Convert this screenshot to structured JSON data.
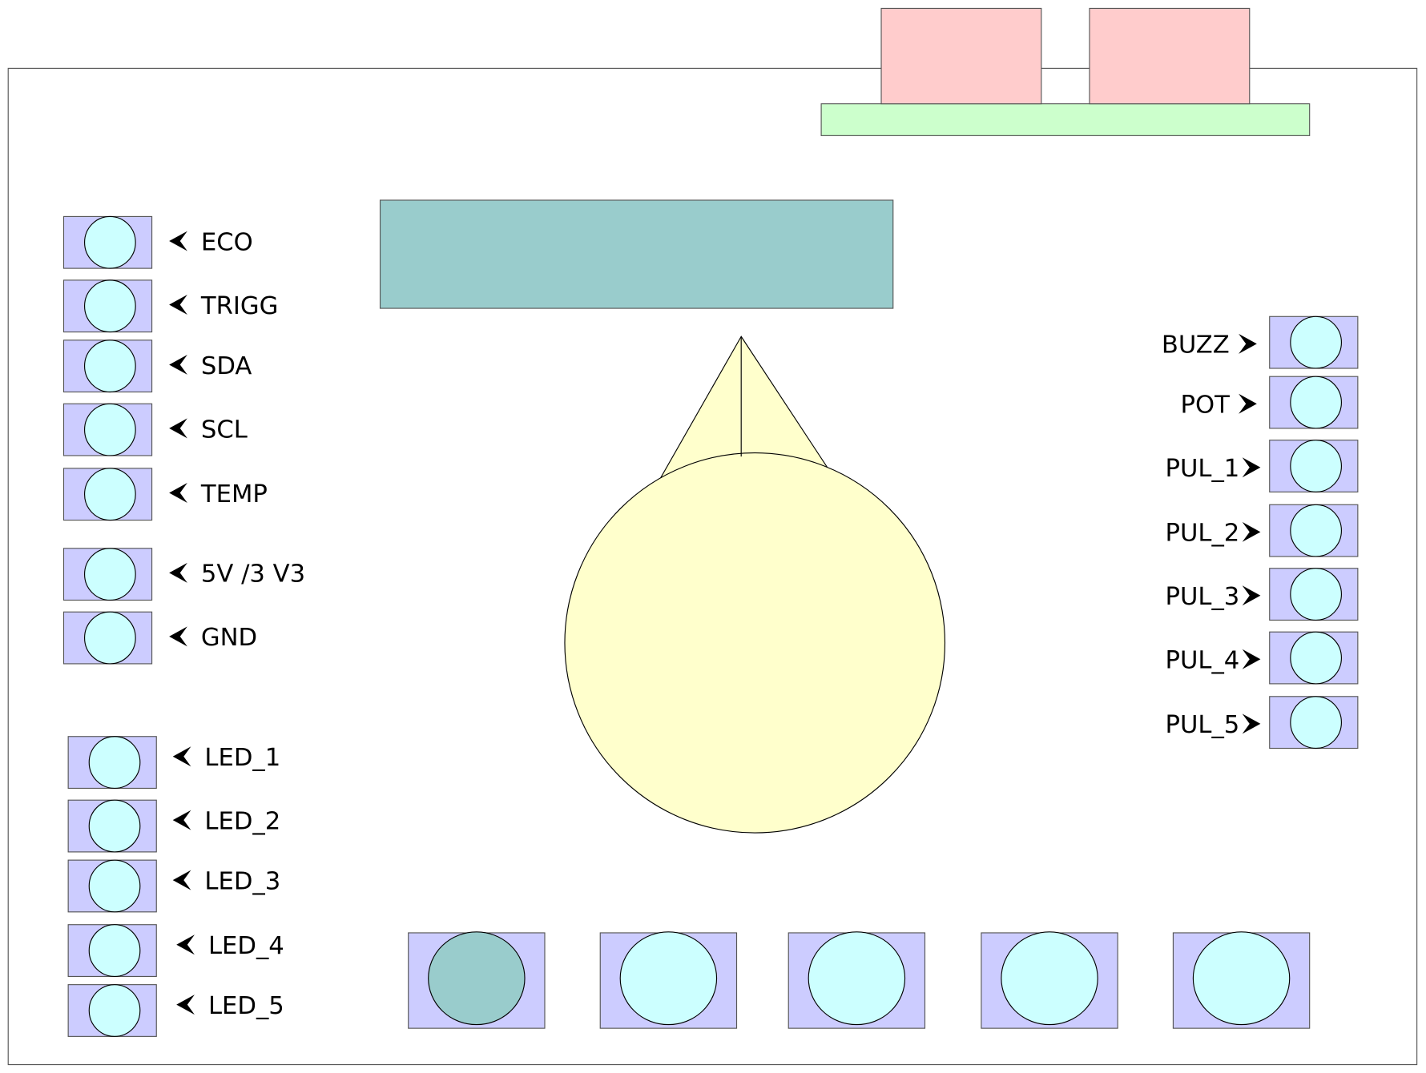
{
  "colors": {
    "board_border": "#555555",
    "pin_box": "#ccccff",
    "pin_circle": "#ccffff",
    "lcd": "#99cccc",
    "connector": "#ffcccc",
    "connector_base": "#ccffcc",
    "dial": "#ffffcc",
    "button_active": "#99cccc"
  },
  "left_pins": [
    {
      "label": "ECO"
    },
    {
      "label": "TRIGG"
    },
    {
      "label": "SDA"
    },
    {
      "label": "SCL"
    },
    {
      "label": "TEMP"
    },
    {
      "label": "5V /3 V3"
    },
    {
      "label": "GND"
    }
  ],
  "led_pins": [
    {
      "label": "LED_1"
    },
    {
      "label": "LED_2"
    },
    {
      "label": "LED_3"
    },
    {
      "label": "LED_4"
    },
    {
      "label": "LED_5"
    }
  ],
  "right_pins": [
    {
      "label": "BUZZ"
    },
    {
      "label": "POT"
    },
    {
      "label": "PUL_1"
    },
    {
      "label": "PUL_2"
    },
    {
      "label": "PUL_3"
    },
    {
      "label": "PUL_4"
    },
    {
      "label": "PUL_5"
    }
  ],
  "arrow_left_glyph": "➤",
  "bottom_buttons": [
    {
      "active": true
    },
    {
      "active": false
    },
    {
      "active": false
    },
    {
      "active": false
    },
    {
      "active": false
    }
  ]
}
